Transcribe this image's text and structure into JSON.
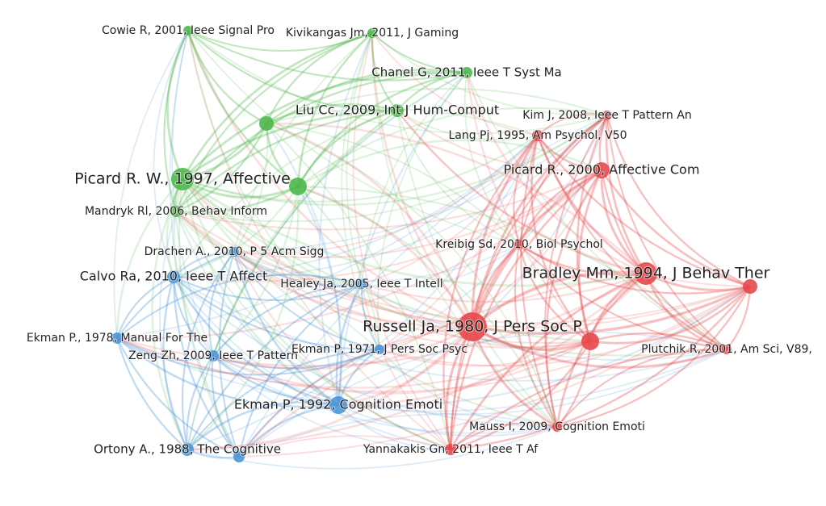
{
  "nodes": [
    {
      "label": "Cowie R, 2001, Ieee Signal Pro",
      "color": "#4cb84a"
    },
    {
      "label": "Kivikangas Jm, 2011, J Gaming",
      "color": "#4cb84a"
    },
    {
      "label": "Chanel G, 2011, Ieee T Syst Ma",
      "color": "#4cb84a"
    },
    {
      "label": "Liu Cc, 2009, Int J Hum-Comput",
      "color": "#4cb84a"
    },
    {
      "label": "Picard R. W., 1997, Affective",
      "color": "#4cb84a"
    },
    {
      "label": "Mandryk Rl, 2006, Behav Inform",
      "color": "#4cb84a"
    },
    {
      "label": "Drachen A., 2010, P 5 Acm Sigg",
      "color": "#4a96d8"
    },
    {
      "label": "Calvo Ra, 2010, Ieee T Affect",
      "color": "#4a96d8"
    },
    {
      "label": "Healey Ja, 2005, Ieee T Intell",
      "color": "#4a96d8"
    },
    {
      "label": "Ekman P., 1978, Manual For The",
      "color": "#4a96d8"
    },
    {
      "label": "Zeng Zh, 2009, Ieee T Pattern",
      "color": "#4a96d8"
    },
    {
      "label": "Ekman P, 1971, J Pers Soc Psyc",
      "color": "#4a96d8"
    },
    {
      "label": "Ekman P, 1992, Cognition Emoti",
      "color": "#4a96d8"
    },
    {
      "label": "Ortony A., 1988, The Cognitive",
      "color": "#4a96d8"
    },
    {
      "label": "Kim J, 2008, Ieee T Pattern An",
      "color": "#e8484a"
    },
    {
      "label": "Lang Pj, 1995, Am Psychol, V50",
      "color": "#e8484a"
    },
    {
      "label": "Picard R., 2000, Affective Com",
      "color": "#e8484a"
    },
    {
      "label": "Kreibig Sd, 2010, Biol Psychol",
      "color": "#e8484a"
    },
    {
      "label": "Bradley Mm, 1994, J Behav Ther",
      "color": "#e8484a"
    },
    {
      "label": "Russell Ja, 1980, J Pers Soc P",
      "color": "#e8484a"
    },
    {
      "label": "Plutchik R, 2001, Am Sci, V89,",
      "color": "#e8484a"
    },
    {
      "label": "Mauss I, 2009, Cognition Emoti",
      "color": "#e8484a"
    },
    {
      "label": "Yannakakis Gn, 2011, Ieee T Af",
      "color": "#e8484a"
    }
  ]
}
